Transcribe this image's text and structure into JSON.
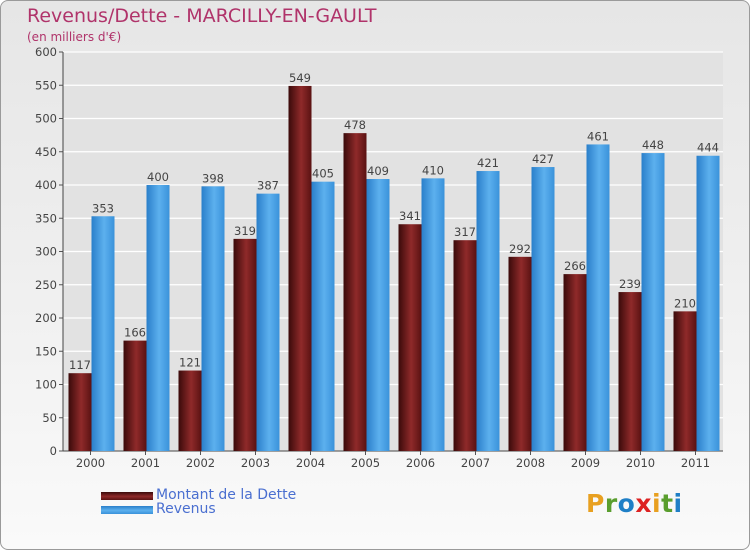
{
  "title": "Revenus/Dette - MARCILLY-EN-GAULT",
  "subtitle": "(en milliers d'€)",
  "colors": {
    "dette": "#7a1f1f",
    "revenus": "#3f95dc",
    "title": "#b0336a",
    "legend_text": "#4a6fd0"
  },
  "chart_data": {
    "type": "bar",
    "title": "Revenus/Dette - MARCILLY-EN-GAULT",
    "ylabel": "(en milliers d'€)",
    "ylim": [
      0,
      600
    ],
    "yticks": [
      0,
      50,
      100,
      150,
      200,
      250,
      300,
      350,
      400,
      450,
      500,
      550,
      600
    ],
    "grid": true,
    "legend_position": "bottom-left",
    "categories": [
      "2000",
      "2001",
      "2002",
      "2003",
      "2004",
      "2005",
      "2006",
      "2007",
      "2008",
      "2009",
      "2010",
      "2011"
    ],
    "series": [
      {
        "name": "Montant de la Dette",
        "values": [
          117,
          166,
          121,
          319,
          549,
          478,
          341,
          317,
          292,
          266,
          239,
          210
        ]
      },
      {
        "name": "Revenus",
        "values": [
          353,
          400,
          398,
          387,
          405,
          409,
          410,
          421,
          427,
          461,
          448,
          444
        ]
      }
    ]
  },
  "logo": {
    "letters": [
      "P",
      "r",
      "o",
      "x",
      "i",
      "t",
      "i"
    ],
    "colors": [
      "#e8a020",
      "#5a9e2e",
      "#1f7fc6",
      "#d22",
      "#e8a020",
      "#5a9e2e",
      "#1f7fc6"
    ]
  }
}
